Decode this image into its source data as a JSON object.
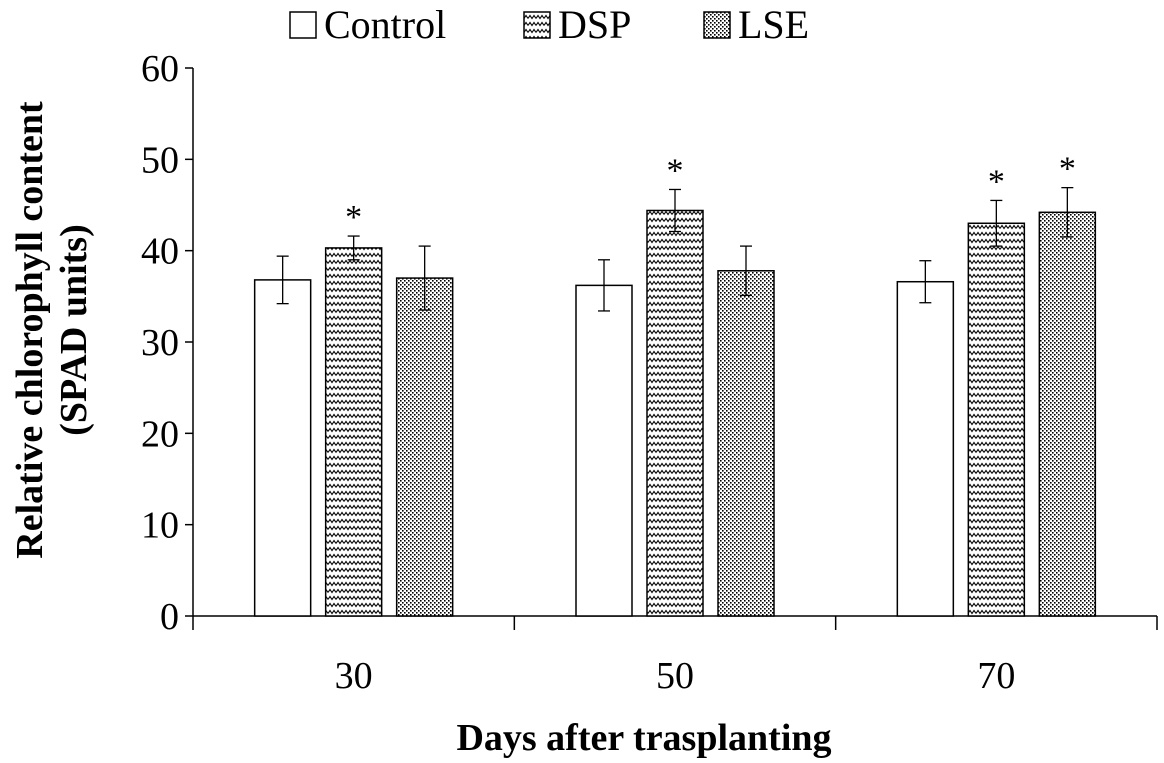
{
  "chart_data": {
    "type": "bar",
    "title": "",
    "xlabel": "Days after trasplanting",
    "ylabel_lines": [
      "Relative chlorophyll content",
      "(SPAD units)"
    ],
    "ylim": [
      0,
      60
    ],
    "yticks": [
      0,
      10,
      20,
      30,
      40,
      50,
      60
    ],
    "categories": [
      "30",
      "50",
      "70"
    ],
    "grid": false,
    "legend_position": "top",
    "series": [
      {
        "name": "Control",
        "pattern": "none",
        "values": [
          36.8,
          36.2,
          36.6
        ],
        "errors": [
          2.6,
          2.8,
          2.3
        ],
        "significant": [
          false,
          false,
          false
        ]
      },
      {
        "name": "DSP",
        "pattern": "zigzag",
        "values": [
          40.3,
          44.4,
          43.0
        ],
        "errors": [
          1.3,
          2.3,
          2.5
        ],
        "significant": [
          true,
          true,
          true
        ]
      },
      {
        "name": "LSE",
        "pattern": "dots",
        "values": [
          37.0,
          37.8,
          44.2
        ],
        "errors": [
          3.5,
          2.7,
          2.7
        ],
        "significant": [
          false,
          false,
          true
        ]
      }
    ],
    "significance_marker": "*"
  }
}
